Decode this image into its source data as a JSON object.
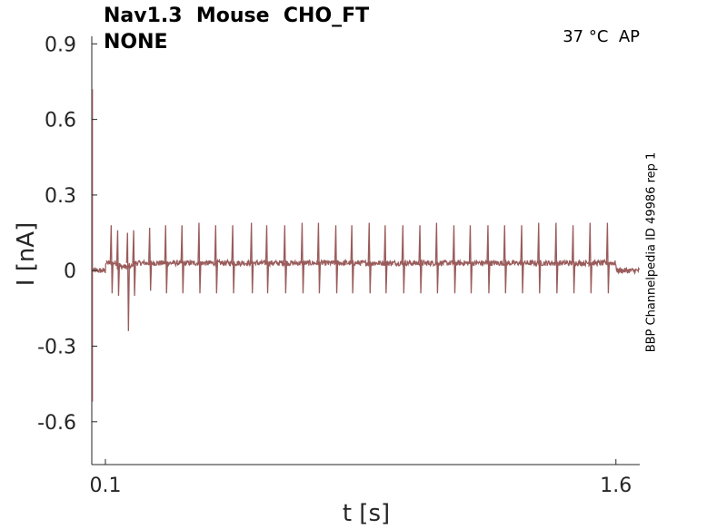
{
  "header": {
    "title_line1": "Nav1.3  Mouse  CHO_FT",
    "title_line2": "NONE",
    "condition": "37 °C  AP",
    "side_label": "BBP Channelpedia ID 49986 rep 1"
  },
  "chart_data": {
    "type": "line",
    "xlabel": "t [s]",
    "ylabel": "I [nA]",
    "xlim": [
      0.06,
      1.67
    ],
    "ylim": [
      -0.77,
      0.93
    ],
    "xticks": [
      0.1,
      1.6
    ],
    "xtick_labels": [
      "0.1",
      "1.6"
    ],
    "yticks": [
      0.9,
      0.6,
      0.3,
      0,
      -0.3,
      -0.6
    ],
    "ytick_labels": [
      "0.9",
      "0.6",
      "0.3",
      "0",
      "-0.3",
      "-0.6"
    ],
    "grid": false,
    "line_color": "#9a5b5b",
    "series": [
      {
        "baseline_before": 0.0,
        "baseline_during": 0.03,
        "baseline_after": 0.0,
        "stimulus_on": 0.1,
        "stimulus_off": 1.6,
        "spike_times": [
          0.117,
          0.136,
          0.165,
          0.183,
          0.23,
          0.277,
          0.325,
          0.375,
          0.424,
          0.474,
          0.529,
          0.574,
          0.627,
          0.678,
          0.726,
          0.777,
          0.824,
          0.875,
          0.922,
          0.974,
          1.024,
          1.073,
          1.124,
          1.172,
          1.224,
          1.273,
          1.323,
          1.373,
          1.424,
          1.474,
          1.524,
          1.575
        ],
        "spike_peaks": [
          0.18,
          0.16,
          0.15,
          0.16,
          0.17,
          0.18,
          0.18,
          0.19,
          0.18,
          0.18,
          0.19,
          0.18,
          0.18,
          0.19,
          0.19,
          0.18,
          0.18,
          0.19,
          0.18,
          0.18,
          0.18,
          0.19,
          0.18,
          0.18,
          0.18,
          0.18,
          0.18,
          0.19,
          0.19,
          0.18,
          0.19,
          0.19
        ],
        "spike_troughs": [
          -0.09,
          -0.1,
          -0.24,
          -0.1,
          -0.08,
          -0.09,
          -0.09,
          -0.09,
          -0.09,
          -0.09,
          -0.09,
          -0.09,
          -0.09,
          -0.09,
          -0.09,
          -0.09,
          -0.09,
          -0.09,
          -0.09,
          -0.09,
          -0.09,
          -0.09,
          -0.09,
          -0.09,
          -0.09,
          -0.09,
          -0.09,
          -0.09,
          -0.09,
          -0.09,
          -0.09,
          -0.09
        ],
        "onset_transient": [
          0.72,
          -0.52
        ]
      }
    ]
  }
}
